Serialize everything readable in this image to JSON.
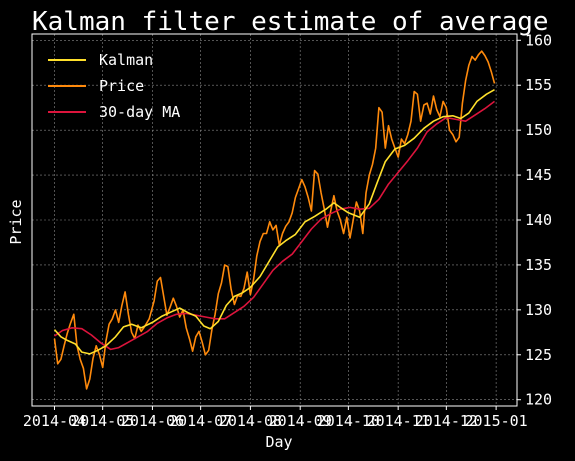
{
  "chart_data": {
    "type": "line",
    "title": "Kalman filter estimate of average",
    "xlabel": "Day",
    "ylabel": "Price",
    "x_tick_labels": [
      "2014-04",
      "2014-05",
      "2014-06",
      "2014-07",
      "2014-08",
      "2014-09",
      "2014-10",
      "2014-11",
      "2014-12",
      "2015-01"
    ],
    "y_ticks": [
      120,
      125,
      130,
      135,
      140,
      145,
      150,
      155,
      160
    ],
    "xlim": [
      "2014-03-18",
      "2015-01-14"
    ],
    "ylim": [
      119.3,
      160.7
    ],
    "y_axis_side": "right",
    "grid": true,
    "legend_position": "top-left",
    "colors": {
      "background": "#000000",
      "text": "#ffffff",
      "grid": "#888888"
    },
    "series": [
      {
        "name": "Kalman",
        "color": "#ffe02b",
        "points": [
          [
            "2014-04-01",
            127.8
          ],
          [
            "2014-04-05",
            127.0
          ],
          [
            "2014-04-09",
            126.6
          ],
          [
            "2014-04-14",
            126.2
          ],
          [
            "2014-04-18",
            125.3
          ],
          [
            "2014-04-23",
            125.1
          ],
          [
            "2014-04-28",
            125.5
          ],
          [
            "2014-05-03",
            126.0
          ],
          [
            "2014-05-09",
            127.0
          ],
          [
            "2014-05-14",
            128.1
          ],
          [
            "2014-05-19",
            128.4
          ],
          [
            "2014-05-25",
            128.0
          ],
          [
            "2014-06-01",
            128.6
          ],
          [
            "2014-06-07",
            129.3
          ],
          [
            "2014-06-13",
            129.8
          ],
          [
            "2014-06-18",
            130.2
          ],
          [
            "2014-06-23",
            129.7
          ],
          [
            "2014-06-28",
            129.3
          ],
          [
            "2014-07-03",
            128.2
          ],
          [
            "2014-07-07",
            127.9
          ],
          [
            "2014-07-12",
            128.7
          ],
          [
            "2014-07-17",
            130.5
          ],
          [
            "2014-07-22",
            131.5
          ],
          [
            "2014-07-27",
            131.9
          ],
          [
            "2014-08-01",
            132.5
          ],
          [
            "2014-08-07",
            133.7
          ],
          [
            "2014-08-13",
            135.5
          ],
          [
            "2014-08-18",
            137.0
          ],
          [
            "2014-08-23",
            137.7
          ],
          [
            "2014-08-29",
            138.4
          ],
          [
            "2014-09-04",
            139.8
          ],
          [
            "2014-09-10",
            140.4
          ],
          [
            "2014-09-17",
            141.2
          ],
          [
            "2014-09-22",
            141.9
          ],
          [
            "2014-09-26",
            141.4
          ],
          [
            "2014-10-01",
            140.8
          ],
          [
            "2014-10-08",
            140.3
          ],
          [
            "2014-10-14",
            141.8
          ],
          [
            "2014-10-19",
            144.2
          ],
          [
            "2014-10-24",
            146.5
          ],
          [
            "2014-10-30",
            147.9
          ],
          [
            "2014-11-05",
            148.3
          ],
          [
            "2014-11-11",
            149.1
          ],
          [
            "2014-11-17",
            150.2
          ],
          [
            "2014-11-23",
            151.0
          ],
          [
            "2014-11-29",
            151.5
          ],
          [
            "2014-12-05",
            151.6
          ],
          [
            "2014-12-10",
            151.3
          ],
          [
            "2014-12-15",
            151.9
          ],
          [
            "2014-12-20",
            153.2
          ],
          [
            "2014-12-26",
            154.0
          ],
          [
            "2014-12-31",
            154.5
          ]
        ]
      },
      {
        "name": "Price",
        "color": "#ff8a0c",
        "points": [
          [
            "2014-04-01",
            126.8
          ],
          [
            "2014-04-03",
            124.0
          ],
          [
            "2014-04-05",
            124.5
          ],
          [
            "2014-04-07",
            126.0
          ],
          [
            "2014-04-09",
            127.4
          ],
          [
            "2014-04-11",
            128.5
          ],
          [
            "2014-04-13",
            129.5
          ],
          [
            "2014-04-15",
            126.0
          ],
          [
            "2014-04-17",
            124.5
          ],
          [
            "2014-04-19",
            123.5
          ],
          [
            "2014-04-21",
            121.2
          ],
          [
            "2014-04-23",
            122.3
          ],
          [
            "2014-04-25",
            124.6
          ],
          [
            "2014-04-27",
            126.0
          ],
          [
            "2014-04-29",
            125.0
          ],
          [
            "2014-05-01",
            123.6
          ],
          [
            "2014-05-03",
            126.5
          ],
          [
            "2014-05-05",
            128.4
          ],
          [
            "2014-05-07",
            129.0
          ],
          [
            "2014-05-09",
            130.0
          ],
          [
            "2014-05-11",
            128.6
          ],
          [
            "2014-05-13",
            130.5
          ],
          [
            "2014-05-15",
            132.0
          ],
          [
            "2014-05-17",
            129.5
          ],
          [
            "2014-05-19",
            127.5
          ],
          [
            "2014-05-21",
            126.8
          ],
          [
            "2014-05-23",
            128.3
          ],
          [
            "2014-05-25",
            127.6
          ],
          [
            "2014-05-27",
            128.1
          ],
          [
            "2014-05-30",
            129.0
          ],
          [
            "2014-06-02",
            131.0
          ],
          [
            "2014-06-04",
            133.2
          ],
          [
            "2014-06-06",
            133.6
          ],
          [
            "2014-06-08",
            131.5
          ],
          [
            "2014-06-10",
            129.4
          ],
          [
            "2014-06-12",
            130.3
          ],
          [
            "2014-06-14",
            131.3
          ],
          [
            "2014-06-16",
            130.4
          ],
          [
            "2014-06-18",
            129.2
          ],
          [
            "2014-06-20",
            130.0
          ],
          [
            "2014-06-22",
            128.0
          ],
          [
            "2014-06-24",
            126.8
          ],
          [
            "2014-06-26",
            125.4
          ],
          [
            "2014-06-28",
            127.0
          ],
          [
            "2014-06-30",
            127.6
          ],
          [
            "2014-07-02",
            126.4
          ],
          [
            "2014-07-04",
            125.0
          ],
          [
            "2014-07-06",
            125.5
          ],
          [
            "2014-07-08",
            127.8
          ],
          [
            "2014-07-10",
            129.5
          ],
          [
            "2014-07-12",
            131.8
          ],
          [
            "2014-07-14",
            133.0
          ],
          [
            "2014-07-16",
            135.0
          ],
          [
            "2014-07-18",
            134.8
          ],
          [
            "2014-07-20",
            132.3
          ],
          [
            "2014-07-22",
            130.6
          ],
          [
            "2014-07-24",
            131.6
          ],
          [
            "2014-07-26",
            131.5
          ],
          [
            "2014-07-28",
            132.4
          ],
          [
            "2014-07-30",
            134.2
          ],
          [
            "2014-08-01",
            131.7
          ],
          [
            "2014-08-03",
            133.4
          ],
          [
            "2014-08-05",
            136.0
          ],
          [
            "2014-08-07",
            137.6
          ],
          [
            "2014-08-09",
            138.5
          ],
          [
            "2014-08-11",
            138.5
          ],
          [
            "2014-08-13",
            139.8
          ],
          [
            "2014-08-15",
            138.9
          ],
          [
            "2014-08-17",
            139.4
          ],
          [
            "2014-08-19",
            137.2
          ],
          [
            "2014-08-21",
            138.5
          ],
          [
            "2014-08-23",
            139.3
          ],
          [
            "2014-08-25",
            139.8
          ],
          [
            "2014-08-27",
            140.8
          ],
          [
            "2014-08-29",
            142.5
          ],
          [
            "2014-08-31",
            143.5
          ],
          [
            "2014-09-02",
            144.5
          ],
          [
            "2014-09-04",
            143.7
          ],
          [
            "2014-09-06",
            142.5
          ],
          [
            "2014-09-08",
            141.0
          ],
          [
            "2014-09-10",
            145.5
          ],
          [
            "2014-09-12",
            145.1
          ],
          [
            "2014-09-14",
            143.0
          ],
          [
            "2014-09-16",
            141.2
          ],
          [
            "2014-09-18",
            139.2
          ],
          [
            "2014-09-20",
            141.0
          ],
          [
            "2014-09-22",
            142.7
          ],
          [
            "2014-09-24",
            141.0
          ],
          [
            "2014-09-26",
            140.0
          ],
          [
            "2014-09-28",
            138.5
          ],
          [
            "2014-09-30",
            140.3
          ],
          [
            "2014-10-02",
            138.0
          ],
          [
            "2014-10-04",
            140.0
          ],
          [
            "2014-10-06",
            142.0
          ],
          [
            "2014-10-08",
            141.0
          ],
          [
            "2014-10-10",
            138.5
          ],
          [
            "2014-10-12",
            143.0
          ],
          [
            "2014-10-14",
            145.0
          ],
          [
            "2014-10-16",
            146.2
          ],
          [
            "2014-10-18",
            148.0
          ],
          [
            "2014-10-20",
            152.5
          ],
          [
            "2014-10-22",
            152.0
          ],
          [
            "2014-10-24",
            148.0
          ],
          [
            "2014-10-26",
            150.5
          ],
          [
            "2014-10-28",
            149.0
          ],
          [
            "2014-10-30",
            148.0
          ],
          [
            "2014-11-01",
            147.0
          ],
          [
            "2014-11-03",
            149.0
          ],
          [
            "2014-11-05",
            148.5
          ],
          [
            "2014-11-07",
            149.5
          ],
          [
            "2014-11-09",
            151.0
          ],
          [
            "2014-11-11",
            154.3
          ],
          [
            "2014-11-13",
            154.0
          ],
          [
            "2014-11-15",
            151.0
          ],
          [
            "2014-11-17",
            152.8
          ],
          [
            "2014-11-19",
            153.0
          ],
          [
            "2014-11-21",
            151.8
          ],
          [
            "2014-11-23",
            153.8
          ],
          [
            "2014-11-25",
            152.3
          ],
          [
            "2014-11-27",
            151.5
          ],
          [
            "2014-11-29",
            153.2
          ],
          [
            "2014-12-01",
            152.5
          ],
          [
            "2014-12-03",
            150.0
          ],
          [
            "2014-12-05",
            149.5
          ],
          [
            "2014-12-07",
            148.7
          ],
          [
            "2014-12-09",
            149.2
          ],
          [
            "2014-12-11",
            153.0
          ],
          [
            "2014-12-13",
            155.5
          ],
          [
            "2014-12-15",
            157.2
          ],
          [
            "2014-12-17",
            158.2
          ],
          [
            "2014-12-19",
            157.8
          ],
          [
            "2014-12-21",
            158.4
          ],
          [
            "2014-12-23",
            158.8
          ],
          [
            "2014-12-25",
            158.3
          ],
          [
            "2014-12-27",
            157.6
          ],
          [
            "2014-12-29",
            156.5
          ],
          [
            "2014-12-31",
            155.2
          ]
        ]
      },
      {
        "name": "30-day MA",
        "color": "#dc143c",
        "points": [
          [
            "2014-04-01",
            127.1
          ],
          [
            "2014-04-06",
            127.7
          ],
          [
            "2014-04-12",
            128.0
          ],
          [
            "2014-04-18",
            127.9
          ],
          [
            "2014-04-24",
            127.2
          ],
          [
            "2014-04-30",
            126.3
          ],
          [
            "2014-05-06",
            125.6
          ],
          [
            "2014-05-11",
            125.8
          ],
          [
            "2014-05-17",
            126.4
          ],
          [
            "2014-05-23",
            127.0
          ],
          [
            "2014-05-29",
            127.6
          ],
          [
            "2014-06-04",
            128.5
          ],
          [
            "2014-06-10",
            129.1
          ],
          [
            "2014-06-16",
            129.5
          ],
          [
            "2014-06-22",
            129.6
          ],
          [
            "2014-06-28",
            129.4
          ],
          [
            "2014-07-04",
            129.2
          ],
          [
            "2014-07-10",
            129.0
          ],
          [
            "2014-07-16",
            129.0
          ],
          [
            "2014-07-22",
            129.7
          ],
          [
            "2014-07-28",
            130.4
          ],
          [
            "2014-08-03",
            131.4
          ],
          [
            "2014-08-09",
            132.9
          ],
          [
            "2014-08-15",
            134.4
          ],
          [
            "2014-08-21",
            135.4
          ],
          [
            "2014-08-27",
            136.2
          ],
          [
            "2014-09-02",
            137.6
          ],
          [
            "2014-09-08",
            139.0
          ],
          [
            "2014-09-14",
            140.1
          ],
          [
            "2014-09-20",
            140.7
          ],
          [
            "2014-09-26",
            141.2
          ],
          [
            "2014-10-02",
            141.4
          ],
          [
            "2014-10-08",
            141.2
          ],
          [
            "2014-10-14",
            141.3
          ],
          [
            "2014-10-20",
            142.3
          ],
          [
            "2014-10-26",
            144.0
          ],
          [
            "2014-11-01",
            145.3
          ],
          [
            "2014-11-07",
            146.6
          ],
          [
            "2014-11-13",
            148.0
          ],
          [
            "2014-11-19",
            149.8
          ],
          [
            "2014-11-25",
            150.7
          ],
          [
            "2014-12-01",
            151.4
          ],
          [
            "2014-12-07",
            151.2
          ],
          [
            "2014-12-13",
            151.0
          ],
          [
            "2014-12-19",
            151.7
          ],
          [
            "2014-12-25",
            152.4
          ],
          [
            "2014-12-31",
            153.2
          ]
        ]
      }
    ]
  }
}
